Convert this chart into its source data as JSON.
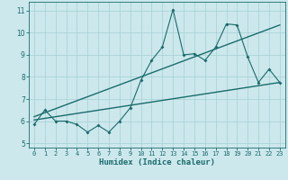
{
  "xlabel": "Humidex (Indice chaleur)",
  "xlim": [
    -0.5,
    23.5
  ],
  "ylim": [
    4.8,
    11.4
  ],
  "yticks": [
    5,
    6,
    7,
    8,
    9,
    10,
    11
  ],
  "xticks": [
    0,
    1,
    2,
    3,
    4,
    5,
    6,
    7,
    8,
    9,
    10,
    11,
    12,
    13,
    14,
    15,
    16,
    17,
    18,
    19,
    20,
    21,
    22,
    23
  ],
  "bg_color": "#cce8ec",
  "line_color": "#1a6b6b",
  "grid_color": "#aad4d8",
  "line1_x": [
    0,
    1,
    2,
    3,
    4,
    5,
    6,
    7,
    8,
    9,
    10,
    11,
    12,
    13,
    14,
    15,
    16,
    17,
    18,
    19,
    20,
    21,
    22,
    23
  ],
  "line1_y": [
    5.85,
    6.5,
    6.0,
    6.0,
    5.85,
    5.5,
    5.8,
    5.5,
    6.0,
    6.6,
    7.85,
    8.75,
    9.35,
    11.05,
    9.0,
    9.05,
    8.75,
    9.35,
    10.4,
    10.35,
    8.9,
    7.75,
    8.35,
    7.75
  ],
  "line2_x": [
    0,
    23
  ],
  "line2_y": [
    6.05,
    7.75
  ],
  "line3_x": [
    0,
    23
  ],
  "line3_y": [
    6.2,
    10.35
  ]
}
